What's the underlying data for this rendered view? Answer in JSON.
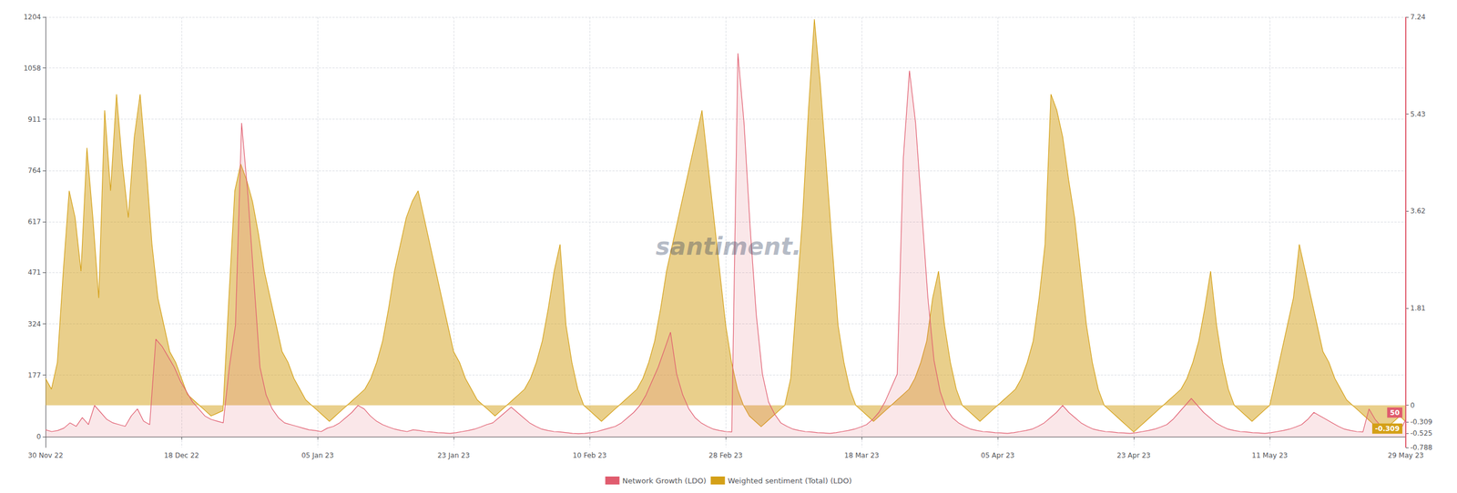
{
  "chart_data": {
    "type": "line",
    "watermark": "santiment.",
    "grid": true,
    "legend": "bottom",
    "xlim": [
      0,
      222
    ],
    "xticks": [
      {
        "value": 0,
        "label": "30 Nov 22"
      },
      {
        "value": 22.2,
        "label": "18 Dec 22"
      },
      {
        "value": 44.4,
        "label": "05 Jan 23"
      },
      {
        "value": 66.6,
        "label": "23 Jan 23"
      },
      {
        "value": 88.8,
        "label": "10 Feb 23"
      },
      {
        "value": 111,
        "label": "28 Feb 23"
      },
      {
        "value": 133.2,
        "label": "18 Mar 23"
      },
      {
        "value": 155.4,
        "label": "05 Apr 23"
      },
      {
        "value": 177.6,
        "label": "23 Apr 23"
      },
      {
        "value": 199.8,
        "label": "11 May 23"
      },
      {
        "value": 222,
        "label": "29 May 23"
      }
    ],
    "ylim": [
      -30.69,
      1204
    ],
    "yticks": [
      1204,
      1058,
      911,
      764,
      617,
      471,
      324,
      177,
      0
    ],
    "y2lim": [
      -0.788,
      7.24
    ],
    "y2ticks": [
      7.24,
      5.43,
      3.62,
      1.81,
      0,
      -0.309,
      -0.525,
      -0.788
    ],
    "annotations": [
      {
        "text": "50",
        "x": 222,
        "y": 50,
        "axis": "y",
        "color": "#e05c6e"
      },
      {
        "text": "-0.309",
        "x": 222,
        "y": -0.309,
        "axis": "y2",
        "color": "#d4a017"
      }
    ],
    "series": [
      {
        "name": "Network Growth (LDO)",
        "color": "#e05c6e",
        "axis": "y",
        "values": [
          20,
          15,
          18,
          25,
          40,
          30,
          55,
          35,
          90,
          70,
          50,
          40,
          35,
          30,
          60,
          80,
          45,
          35,
          280,
          260,
          230,
          200,
          160,
          130,
          100,
          80,
          60,
          50,
          45,
          40,
          200,
          320,
          900,
          700,
          450,
          200,
          120,
          80,
          55,
          40,
          35,
          30,
          25,
          20,
          18,
          15,
          25,
          30,
          40,
          55,
          70,
          90,
          80,
          60,
          45,
          35,
          28,
          22,
          18,
          15,
          20,
          18,
          15,
          14,
          12,
          11,
          10,
          12,
          15,
          18,
          22,
          28,
          35,
          40,
          55,
          70,
          85,
          70,
          55,
          40,
          30,
          22,
          18,
          15,
          14,
          12,
          10,
          9,
          10,
          12,
          15,
          20,
          25,
          30,
          40,
          55,
          70,
          90,
          120,
          160,
          200,
          250,
          300,
          180,
          120,
          80,
          55,
          40,
          30,
          22,
          18,
          15,
          14,
          1100,
          900,
          600,
          350,
          180,
          100,
          65,
          40,
          30,
          22,
          18,
          15,
          14,
          12,
          11,
          10,
          12,
          15,
          18,
          22,
          28,
          35,
          50,
          70,
          100,
          140,
          180,
          800,
          1050,
          900,
          650,
          400,
          220,
          130,
          80,
          55,
          40,
          30,
          22,
          18,
          15,
          14,
          12,
          11,
          10,
          12,
          15,
          18,
          22,
          30,
          40,
          55,
          70,
          90,
          70,
          55,
          40,
          30,
          22,
          18,
          15,
          14,
          12,
          11,
          10,
          12,
          15,
          18,
          22,
          28,
          35,
          50,
          70,
          90,
          110,
          90,
          70,
          55,
          40,
          30,
          22,
          18,
          15,
          14,
          12,
          11,
          10,
          12,
          15,
          18,
          22,
          28,
          35,
          50,
          70,
          60,
          50,
          40,
          30,
          22,
          18,
          15,
          14,
          80,
          50,
          30,
          20,
          18,
          15,
          50
        ]
      },
      {
        "name": "Weighted sentiment (Total) (LDO)",
        "color": "#d4a017",
        "axis": "y2",
        "values": [
          0.5,
          0.3,
          0.8,
          2.5,
          4.0,
          3.5,
          2.5,
          4.8,
          3.5,
          2.0,
          5.5,
          4.0,
          5.8,
          4.5,
          3.5,
          5.0,
          5.8,
          4.5,
          3.0,
          2.0,
          1.5,
          1.0,
          0.8,
          0.5,
          0.2,
          0.1,
          0.0,
          -0.1,
          -0.2,
          -0.15,
          -0.1,
          2.0,
          4.0,
          4.5,
          4.2,
          3.8,
          3.2,
          2.5,
          2.0,
          1.5,
          1.0,
          0.8,
          0.5,
          0.3,
          0.1,
          0.0,
          -0.1,
          -0.2,
          -0.3,
          -0.2,
          -0.1,
          0.0,
          0.1,
          0.2,
          0.3,
          0.5,
          0.8,
          1.2,
          1.8,
          2.5,
          3.0,
          3.5,
          3.8,
          4.0,
          3.5,
          3.0,
          2.5,
          2.0,
          1.5,
          1.0,
          0.8,
          0.5,
          0.3,
          0.1,
          0.0,
          -0.1,
          -0.2,
          -0.1,
          0.0,
          0.1,
          0.2,
          0.3,
          0.5,
          0.8,
          1.2,
          1.8,
          2.5,
          3.0,
          1.5,
          0.8,
          0.3,
          0.0,
          -0.1,
          -0.2,
          -0.3,
          -0.2,
          -0.1,
          0.0,
          0.1,
          0.2,
          0.3,
          0.5,
          0.8,
          1.2,
          1.8,
          2.5,
          3.0,
          3.5,
          4.0,
          4.5,
          5.0,
          5.5,
          4.5,
          3.5,
          2.5,
          1.5,
          0.8,
          0.3,
          0.0,
          -0.2,
          -0.3,
          -0.4,
          -0.3,
          -0.2,
          -0.1,
          0.0,
          0.5,
          2.0,
          3.5,
          5.5,
          7.2,
          6.0,
          4.5,
          3.0,
          1.5,
          0.8,
          0.3,
          0.0,
          -0.1,
          -0.2,
          -0.3,
          -0.2,
          -0.1,
          0.0,
          0.1,
          0.2,
          0.3,
          0.5,
          0.8,
          1.2,
          2.0,
          2.5,
          1.5,
          0.8,
          0.3,
          0.0,
          -0.1,
          -0.2,
          -0.3,
          -0.2,
          -0.1,
          0.0,
          0.1,
          0.2,
          0.3,
          0.5,
          0.8,
          1.2,
          2.0,
          3.0,
          5.8,
          5.5,
          5.0,
          4.2,
          3.5,
          2.5,
          1.5,
          0.8,
          0.3,
          0.0,
          -0.1,
          -0.2,
          -0.3,
          -0.4,
          -0.5,
          -0.4,
          -0.3,
          -0.2,
          -0.1,
          0.0,
          0.1,
          0.2,
          0.3,
          0.5,
          0.8,
          1.2,
          1.8,
          2.5,
          1.5,
          0.8,
          0.3,
          0.0,
          -0.1,
          -0.2,
          -0.3,
          -0.2,
          -0.1,
          0.0,
          0.5,
          1.0,
          1.5,
          2.0,
          3.0,
          2.5,
          2.0,
          1.5,
          1.0,
          0.8,
          0.5,
          0.3,
          0.1,
          0.0,
          -0.1,
          -0.2,
          -0.3,
          -0.4,
          -0.5,
          -0.4,
          -0.3,
          -0.2,
          -0.309
        ]
      }
    ]
  }
}
